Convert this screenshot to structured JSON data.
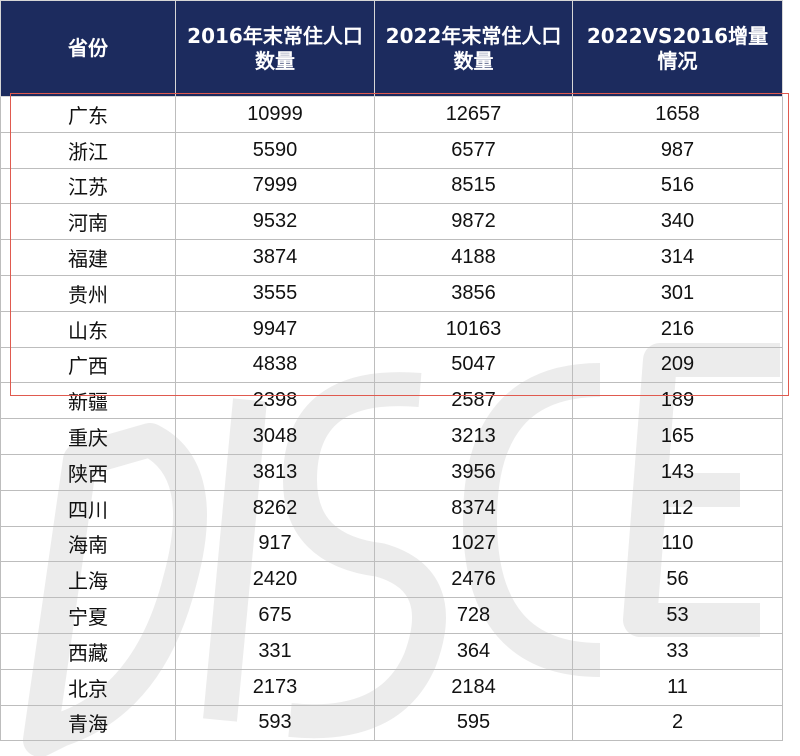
{
  "table": {
    "headers": [
      "省份",
      "2016年末常住人口数量",
      "2022年末常住人口数量",
      "2022VS2016增量情况"
    ],
    "rows": [
      [
        "广东",
        "10999",
        "12657",
        "1658"
      ],
      [
        "浙江",
        "5590",
        "6577",
        "987"
      ],
      [
        "江苏",
        "7999",
        "8515",
        "516"
      ],
      [
        "河南",
        "9532",
        "9872",
        "340"
      ],
      [
        "福建",
        "3874",
        "4188",
        "314"
      ],
      [
        "贵州",
        "3555",
        "3856",
        "301"
      ],
      [
        "山东",
        "9947",
        "10163",
        "216"
      ],
      [
        "广西",
        "4838",
        "5047",
        "209"
      ],
      [
        "新疆",
        "2398",
        "2587",
        "189"
      ],
      [
        "重庆",
        "3048",
        "3213",
        "165"
      ],
      [
        "陕西",
        "3813",
        "3956",
        "143"
      ],
      [
        "四川",
        "8262",
        "8374",
        "112"
      ],
      [
        "海南",
        "917",
        "1027",
        "110"
      ],
      [
        "上海",
        "2420",
        "2476",
        "56"
      ],
      [
        "宁夏",
        "675",
        "728",
        "53"
      ],
      [
        "西藏",
        "331",
        "364",
        "33"
      ],
      [
        "北京",
        "2173",
        "2184",
        "11"
      ],
      [
        "青海",
        "593",
        "595",
        "2"
      ]
    ]
  },
  "colors": {
    "header_bg": "#1c2b5e",
    "header_text": "#ffffff",
    "highlight_border": "#e05a4f"
  }
}
